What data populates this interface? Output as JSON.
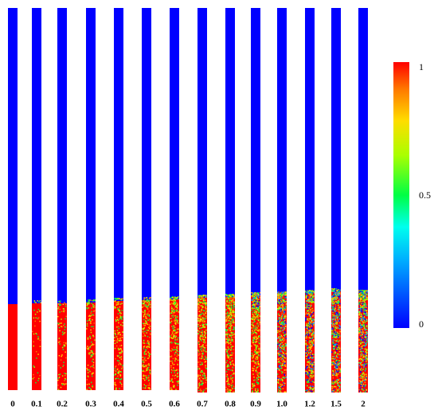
{
  "columns": [
    {
      "label": "0"
    },
    {
      "label": "0.1"
    },
    {
      "label": "0.2"
    },
    {
      "label": "0.3"
    },
    {
      "label": "0.4"
    },
    {
      "label": "0.5"
    },
    {
      "label": "0.6"
    },
    {
      "label": "0.7"
    },
    {
      "label": "0.8"
    },
    {
      "label": "0.9"
    },
    {
      "label": "1.0"
    },
    {
      "label": "1.2"
    },
    {
      "label": "1.5"
    },
    {
      "label": "2"
    }
  ],
  "colorbar": {
    "ticks": [
      "0",
      "0.5",
      "1"
    ]
  }
}
